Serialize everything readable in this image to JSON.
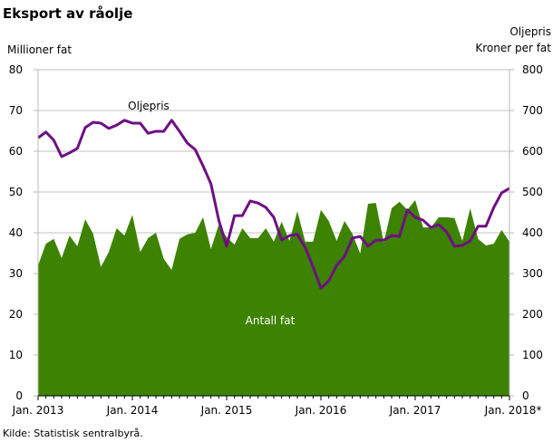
{
  "chart_data": {
    "type": "area+line",
    "title": "Eksport av råolje",
    "ylabel_left": "Millioner  fat",
    "ylabel_right": [
      "Oljepris",
      "Kroner per fat"
    ],
    "source": "Kilde: Statistisk sentralbyrå.",
    "ylim_left": [
      0,
      80
    ],
    "ylim_right": [
      0,
      800
    ],
    "yticks_left": [
      "0",
      "10",
      "20",
      "30",
      "40",
      "50",
      "60",
      "70",
      "80"
    ],
    "yticks_right": [
      "0",
      "100",
      "200",
      "300",
      "400",
      "500",
      "600",
      "700",
      "800"
    ],
    "xticks": [
      "Jan. 2013",
      "Jan. 2014",
      "Jan. 2015",
      "Jan. 2016",
      "Jan. 2017",
      "Jan. 2018*"
    ],
    "grid": true,
    "series": [
      {
        "name": "Antall fat",
        "type": "area",
        "axis": "left",
        "color": "#3d8200",
        "values": [
          32,
          37.3,
          38.5,
          33.8,
          39.3,
          36.7,
          43.3,
          39.8,
          31.6,
          35.3,
          41.1,
          39.3,
          44.4,
          35.3,
          38.7,
          40,
          33.6,
          30.9,
          38.5,
          39.6,
          40,
          43.8,
          36,
          42,
          38.9,
          37.1,
          41.1,
          38.7,
          38.7,
          41.1,
          37.8,
          42.7,
          38,
          45.3,
          37.8,
          37.8,
          45.6,
          42.9,
          38,
          42.9,
          39.8,
          34.9,
          47.1,
          47.3,
          37.6,
          46,
          47.6,
          45.6,
          48,
          41.3,
          41.3,
          43.8,
          43.8,
          43.6,
          38,
          46,
          38.5,
          36.9,
          37.3,
          40.7,
          37.8
        ]
      },
      {
        "name": "Oljepris",
        "type": "line",
        "axis": "right",
        "color": "#6e0f84",
        "values": [
          633,
          647,
          627,
          587,
          596,
          607,
          658,
          671,
          669,
          656,
          664,
          676,
          669,
          669,
          644,
          649,
          649,
          676,
          649,
          620,
          604,
          564,
          520,
          431,
          367,
          442,
          442,
          478,
          473,
          462,
          438,
          382,
          393,
          396,
          364,
          316,
          264,
          282,
          320,
          342,
          387,
          391,
          367,
          382,
          382,
          393,
          391,
          456,
          438,
          431,
          413,
          420,
          402,
          367,
          369,
          380,
          416,
          416,
          462,
          498,
          509
        ]
      }
    ]
  }
}
